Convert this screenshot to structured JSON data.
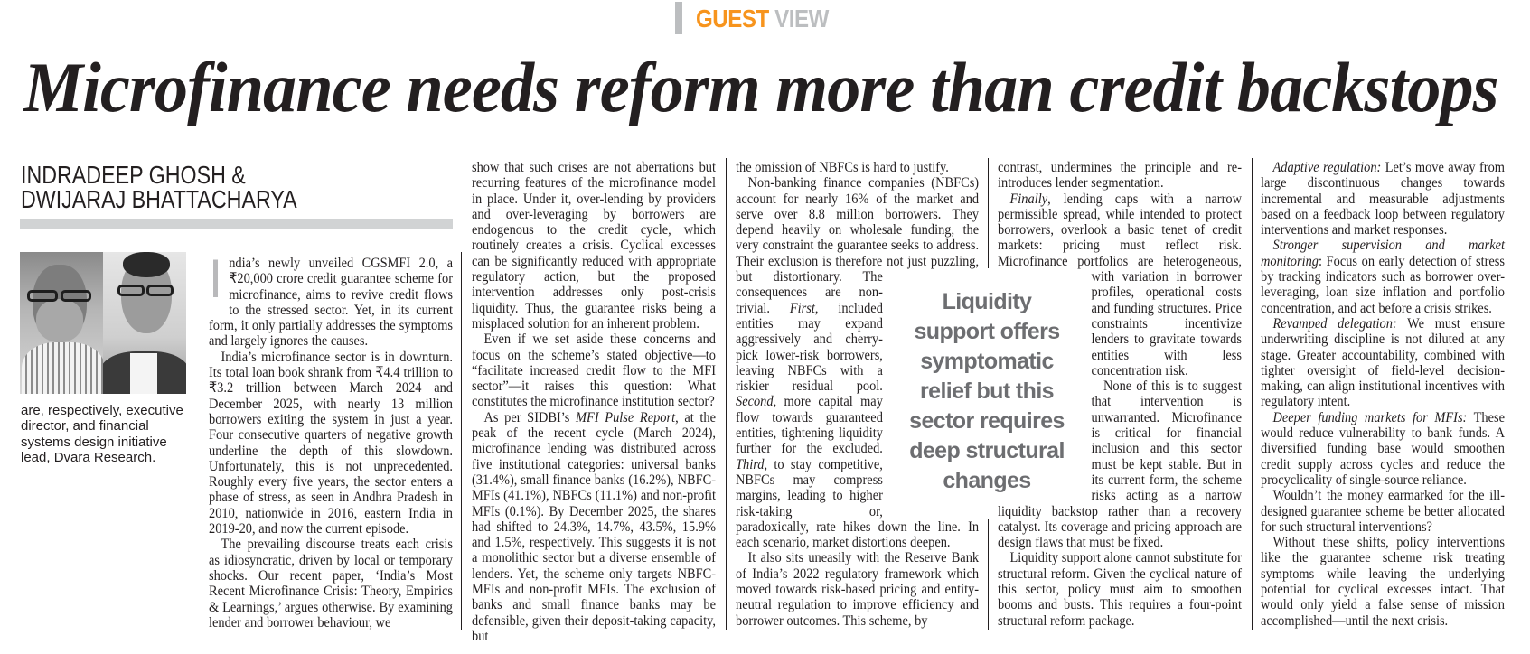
{
  "section": {
    "guest": "GUEST",
    "view": "VIEW"
  },
  "colors": {
    "guest": "#f7941d",
    "view": "#bcbec0",
    "pull_quote": "#6d6e71",
    "text": "#231f20"
  },
  "headline": "Microfinance needs reform more than credit backstops",
  "byline": {
    "line1": "INDRADEEP GHOSH &",
    "line2": "DWIJARAJ BHATTACHARYA"
  },
  "author_photo": "two-author-portraits",
  "author_bio": "are, respectively, executive director, and financial systems design initiative lead, Dvara Research.",
  "drop_cap": "I",
  "pull_quote": {
    "lines": [
      "Liquidity",
      "support offers",
      "symptomatic",
      "relief but this",
      "sector requires",
      "deep structural",
      "changes"
    ]
  },
  "columns": [
    {
      "paragraphs": [
        {
          "indent": false,
          "segments": [
            {
              "text": "ndia’s newly unveiled CGSMFI 2.0, a ₹20,000 crore credit guarantee scheme for microfinance, aims to revive credit flows to the stressed sector. Yet, in its current form, it only partially addresses the symptoms and largely ignores the causes."
            }
          ]
        },
        {
          "indent": true,
          "segments": [
            {
              "text": "India’s microfinance sector is in downturn. Its total loan book shrank from ₹4.4 trillion to ₹3.2 trillion between March 2024 and December 2025, with nearly 13 million borrowers exiting the system in just a year. Four consecutive quarters of negative growth underline the depth of this slowdown. Unfortunately, this is not unprecedented. Roughly every five years, the sector enters a phase of stress, as seen in Andhra Pradesh in 2010, nationwide in 2016, eastern India in 2019-20, and now the current episode."
            }
          ]
        },
        {
          "indent": true,
          "segments": [
            {
              "text": "The prevailing discourse treats each crisis as idiosyncratic, driven by local or temporary shocks. Our recent paper, ‘India’s Most Recent Microfinance Crisis: Theory, Empirics & Learnings,’ argues otherwise. By examining lender and borrower behaviour, we"
            }
          ]
        }
      ]
    },
    {
      "paragraphs": [
        {
          "indent": false,
          "segments": [
            {
              "text": "show that such crises are not aberrations but recurring features of the microfinance model in place. Under it, over-lending by providers and over-leveraging by borrowers are endogenous to the credit cycle, which routinely creates a crisis. Cyclical excesses can be significantly reduced with appropriate regulatory action, but the proposed intervention addresses only post-crisis liquidity. Thus, the guarantee risks being a misplaced solution for an inherent problem."
            }
          ]
        },
        {
          "indent": true,
          "segments": [
            {
              "text": "Even if we set aside these concerns and focus on the scheme’s stated objective—to “facilitate increased credit flow to the MFI sector”—it raises this question: What constitutes the microfinance institution sector?"
            }
          ]
        },
        {
          "indent": true,
          "segments": [
            {
              "text": "As per SIDBI’s "
            },
            {
              "text": "MFI Pulse Report",
              "italic": true
            },
            {
              "text": ", at the peak of the recent cycle (March 2024), microfinance lending was distributed across five institutional categories: universal banks (31.4%), small finance banks (16.2%), NBFC-MFIs (41.1%), NBFCs (11.1%) and non-profit MFIs (0.1%). By December 2025, the shares had shifted to 24.3%, 14.7%, 43.5%, 15.9% and 1.5%, respectively. This suggests it is not a monolithic sector but a diverse ensemble of lenders. Yet, the scheme only targets NBFC-MFIs and non-profit MFIs. The exclusion of banks and small finance banks may be defensible, given their deposit-taking capacity, but"
            }
          ]
        }
      ]
    },
    {
      "paragraphs": [
        {
          "indent": false,
          "segments": [
            {
              "text": "the omission of NBFCs is hard to justify."
            }
          ]
        },
        {
          "indent": true,
          "segments": [
            {
              "text": "Non-banking finance companies (NBFCs) account for nearly 16% of the market and serve over 8.8 million borrowers. They depend heavily on wholesale funding, the very constraint the guarantee seeks to address. Their exclusion is therefore not just puzzling, but distortionary. The consequences are non-trivial. "
            },
            {
              "text": "First",
              "italic": true
            },
            {
              "text": ", included entities may expand aggressively and cherry-pick lower-risk borrowers, leaving NBFCs with a riskier residual pool. "
            },
            {
              "text": "Second",
              "italic": true
            },
            {
              "text": ", more capital may flow towards guaranteed entities, tightening liquidity further for the excluded. "
            },
            {
              "text": "Third",
              "italic": true
            },
            {
              "text": ", to stay competitive, NBFCs may compress margins, leading to higher risk-taking or, paradoxically, rate hikes down the line. In each scenario, market distortions deepen."
            }
          ]
        },
        {
          "indent": true,
          "segments": [
            {
              "text": "It also sits uneasily with the Reserve Bank of India’s 2022 regulatory framework which moved towards risk-based pricing and entity-neutral regulation to improve efficiency and borrower outcomes. This scheme, by"
            }
          ]
        }
      ]
    },
    {
      "paragraphs": [
        {
          "indent": false,
          "segments": [
            {
              "text": "contrast, undermines the principle and re-introduces lender segmentation."
            }
          ]
        },
        {
          "indent": true,
          "segments": [
            {
              "text": "Finally",
              "italic": true
            },
            {
              "text": ", lending caps with a narrow permissible spread, while intended to protect borrowers, overlook a basic tenet of credit markets: pricing must reflect risk. Microfinance portfolios are heterogeneous, with variation in borrower profiles, operational costs and funding structures. Price constraints incentivize lenders to gravitate towards entities with less concentration risk."
            }
          ]
        },
        {
          "indent": true,
          "segments": [
            {
              "text": "None of this is to suggest that intervention is unwarranted. Microfinance is critical for financial inclusion and this sector must be kept stable. But in its current form, the scheme risks acting as a narrow liquidity backstop rather than a recovery catalyst. Its coverage and pricing approach are design flaws that must be fixed."
            }
          ]
        },
        {
          "indent": true,
          "segments": [
            {
              "text": "Liquidity support alone cannot substitute for structural reform. Given the cyclical nature of this sector, policy must aim to smoothen booms and busts. This requires a four-point structural reform package."
            }
          ]
        }
      ]
    },
    {
      "paragraphs": [
        {
          "indent": true,
          "segments": [
            {
              "text": "Adaptive regulation:",
              "italic": true
            },
            {
              "text": " Let’s move away from large discontinuous changes towards incremental and measurable adjustments based on a feedback loop between regulatory interventions and market responses."
            }
          ]
        },
        {
          "indent": true,
          "segments": [
            {
              "text": "Stronger supervision and market monitoring",
              "italic": true
            },
            {
              "text": ": Focus on early detection of stress by tracking indicators such as borrower over-leveraging, loan size inflation and portfolio concentration, and act before a crisis strikes."
            }
          ]
        },
        {
          "indent": true,
          "segments": [
            {
              "text": "Revamped delegation:",
              "italic": true
            },
            {
              "text": " We must ensure underwriting discipline is not diluted at any stage. Greater accountability, combined with tighter oversight of field-level decision-making, can align institutional incentives with regulatory intent."
            }
          ]
        },
        {
          "indent": true,
          "segments": [
            {
              "text": "Deeper funding markets for MFIs:",
              "italic": true
            },
            {
              "text": " These would reduce vulnerability to bank funds. A diversified funding base would smoothen credit supply across cycles and reduce the procyclicality of single-source reliance."
            }
          ]
        },
        {
          "indent": true,
          "segments": [
            {
              "text": "Wouldn’t the money earmarked for the ill-designed guarantee scheme be better allocated for such structural interventions?"
            }
          ]
        },
        {
          "indent": true,
          "segments": [
            {
              "text": "Without these shifts, policy interventions like the guarantee scheme risk treating symptoms while leaving the underlying potential for cyclical excesses intact. That would only yield a false sense of mission accomplished—until the next crisis."
            }
          ]
        }
      ]
    }
  ]
}
